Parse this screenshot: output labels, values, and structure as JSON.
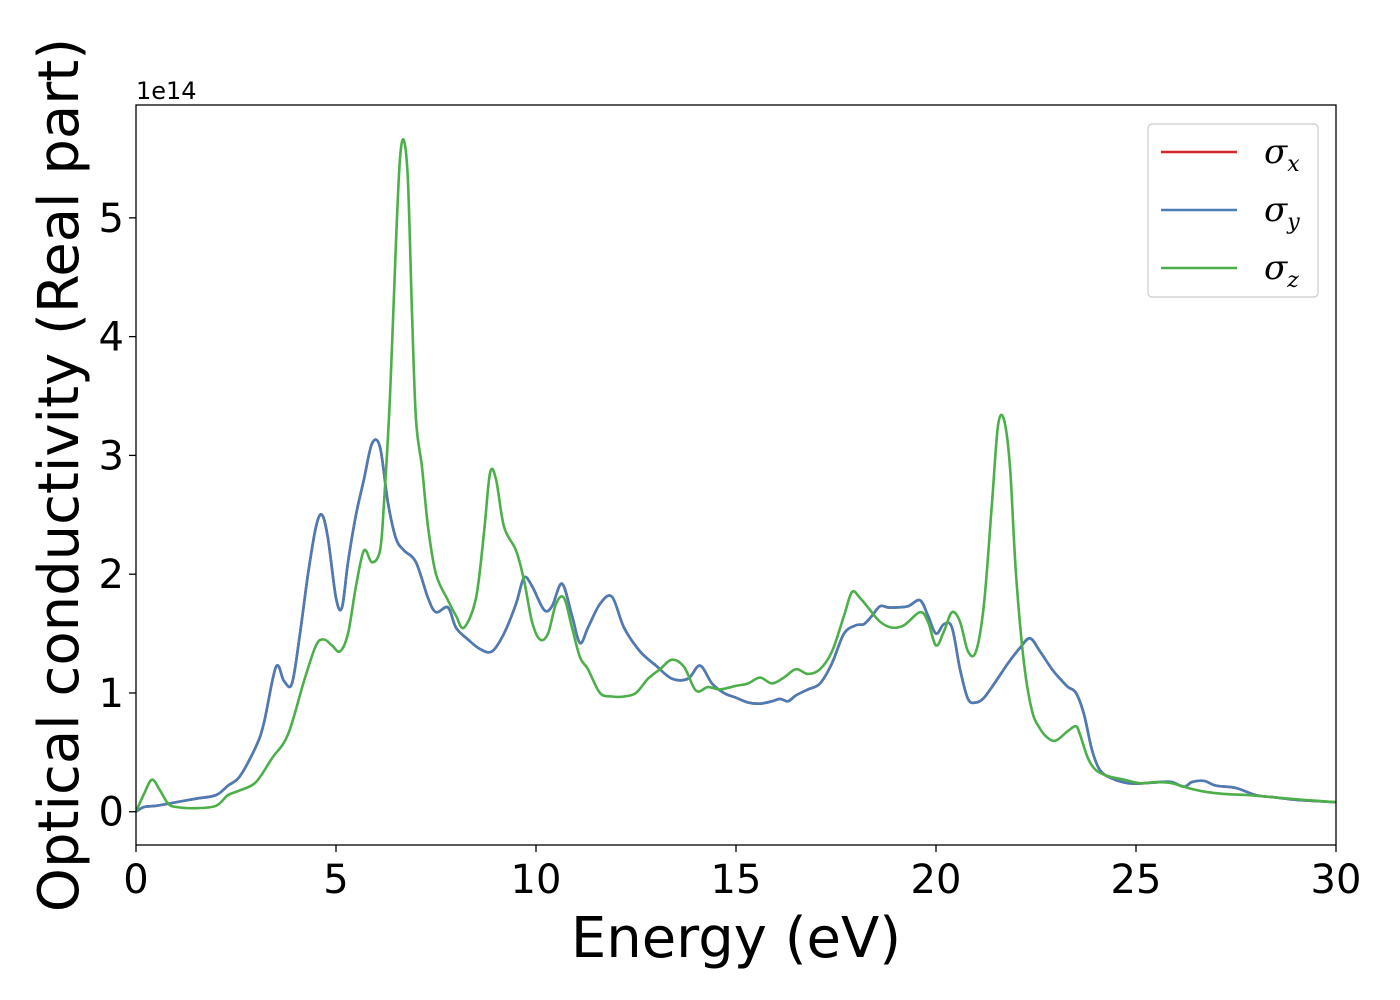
{
  "chart_data": {
    "type": "line",
    "xlabel": "Energy (eV)",
    "ylabel": "Optical conductivity (Real part)",
    "y_offset_label": "1e14",
    "y_scale": 100000000000000.0,
    "xlim": [
      0,
      30
    ],
    "ylim": [
      -0.28,
      5.95
    ],
    "x_ticks": [
      0,
      5,
      10,
      15,
      20,
      25,
      30
    ],
    "y_ticks": [
      0,
      1,
      2,
      3,
      4,
      5
    ],
    "x_tick_labels": [
      "0",
      "5",
      "10",
      "15",
      "20",
      "25",
      "30"
    ],
    "y_tick_labels": [
      "0",
      "1",
      "2",
      "3",
      "4",
      "5"
    ],
    "grid": false,
    "legend_position": "top-right",
    "series": [
      {
        "name": "σx",
        "legend_symbol": "σ",
        "legend_subscript": "x",
        "color": "#d62728",
        "x": [
          0,
          0.2,
          0.5,
          1,
          1.5,
          2,
          2.3,
          2.6,
          3,
          3.2,
          3.5,
          3.7,
          3.9,
          4.1,
          4.3,
          4.5,
          4.65,
          4.8,
          5,
          5.15,
          5.3,
          5.5,
          5.7,
          5.9,
          6.1,
          6.3,
          6.5,
          6.7,
          7,
          7.3,
          7.5,
          7.8,
          8,
          8.3,
          8.6,
          8.9,
          9.2,
          9.5,
          9.7,
          9.9,
          10.2,
          10.4,
          10.65,
          10.9,
          11.1,
          11.3,
          11.6,
          11.9,
          12.2,
          12.6,
          13,
          13.4,
          13.8,
          14.1,
          14.4,
          14.7,
          15,
          15.3,
          15.6,
          15.9,
          16.1,
          16.3,
          16.5,
          16.8,
          17.1,
          17.4,
          17.7,
          18,
          18.2,
          18.4,
          18.6,
          18.8,
          19,
          19.3,
          19.6,
          19.8,
          20,
          20.2,
          20.4,
          20.6,
          20.8,
          21,
          21.2,
          21.5,
          21.8,
          22.1,
          22.35,
          22.6,
          22.9,
          23.1,
          23.3,
          23.5,
          23.7,
          23.9,
          24.1,
          24.4,
          24.8,
          25.2,
          25.6,
          25.9,
          26.2,
          26.4,
          26.7,
          27,
          27.5,
          28,
          28.5,
          29,
          29.5,
          30
        ],
        "values": [
          0,
          0.04,
          0.05,
          0.08,
          0.11,
          0.14,
          0.22,
          0.3,
          0.55,
          0.75,
          1.22,
          1.1,
          1.08,
          1.5,
          2.0,
          2.4,
          2.5,
          2.3,
          1.8,
          1.72,
          2.1,
          2.5,
          2.8,
          3.1,
          3.07,
          2.6,
          2.3,
          2.2,
          2.1,
          1.8,
          1.68,
          1.72,
          1.55,
          1.45,
          1.37,
          1.35,
          1.5,
          1.75,
          1.97,
          1.9,
          1.7,
          1.73,
          1.92,
          1.65,
          1.42,
          1.55,
          1.75,
          1.81,
          1.55,
          1.35,
          1.23,
          1.12,
          1.12,
          1.23,
          1.08,
          1.0,
          0.96,
          0.92,
          0.91,
          0.93,
          0.95,
          0.93,
          0.98,
          1.03,
          1.08,
          1.25,
          1.5,
          1.57,
          1.58,
          1.65,
          1.73,
          1.72,
          1.72,
          1.73,
          1.78,
          1.65,
          1.5,
          1.58,
          1.55,
          1.2,
          0.95,
          0.92,
          0.96,
          1.1,
          1.25,
          1.38,
          1.46,
          1.35,
          1.2,
          1.12,
          1.05,
          1.0,
          0.82,
          0.52,
          0.35,
          0.28,
          0.24,
          0.24,
          0.25,
          0.25,
          0.21,
          0.25,
          0.26,
          0.22,
          0.2,
          0.14,
          0.12,
          0.1,
          0.09,
          0.08
        ],
        "dash": "none"
      },
      {
        "name": "σy",
        "legend_symbol": "σ",
        "legend_subscript": "y",
        "color": "#4a7db5",
        "x": [
          0,
          0.2,
          0.5,
          1,
          1.5,
          2,
          2.3,
          2.6,
          3,
          3.2,
          3.5,
          3.7,
          3.9,
          4.1,
          4.3,
          4.5,
          4.65,
          4.8,
          5,
          5.15,
          5.3,
          5.5,
          5.7,
          5.9,
          6.1,
          6.3,
          6.5,
          6.7,
          7,
          7.3,
          7.5,
          7.8,
          8,
          8.3,
          8.6,
          8.9,
          9.2,
          9.5,
          9.7,
          9.9,
          10.2,
          10.4,
          10.65,
          10.9,
          11.1,
          11.3,
          11.6,
          11.9,
          12.2,
          12.6,
          13,
          13.4,
          13.8,
          14.1,
          14.4,
          14.7,
          15,
          15.3,
          15.6,
          15.9,
          16.1,
          16.3,
          16.5,
          16.8,
          17.1,
          17.4,
          17.7,
          18,
          18.2,
          18.4,
          18.6,
          18.8,
          19,
          19.3,
          19.6,
          19.8,
          20,
          20.2,
          20.4,
          20.6,
          20.8,
          21,
          21.2,
          21.5,
          21.8,
          22.1,
          22.35,
          22.6,
          22.9,
          23.1,
          23.3,
          23.5,
          23.7,
          23.9,
          24.1,
          24.4,
          24.8,
          25.2,
          25.6,
          25.9,
          26.2,
          26.4,
          26.7,
          27,
          27.5,
          28,
          28.5,
          29,
          29.5,
          30
        ],
        "values": [
          0,
          0.04,
          0.05,
          0.08,
          0.11,
          0.14,
          0.22,
          0.3,
          0.55,
          0.75,
          1.22,
          1.1,
          1.08,
          1.5,
          2.0,
          2.4,
          2.5,
          2.3,
          1.8,
          1.72,
          2.1,
          2.5,
          2.8,
          3.1,
          3.07,
          2.6,
          2.3,
          2.2,
          2.1,
          1.8,
          1.68,
          1.72,
          1.55,
          1.45,
          1.37,
          1.35,
          1.5,
          1.75,
          1.97,
          1.9,
          1.7,
          1.73,
          1.92,
          1.65,
          1.42,
          1.55,
          1.75,
          1.81,
          1.55,
          1.35,
          1.23,
          1.12,
          1.12,
          1.23,
          1.08,
          1.0,
          0.96,
          0.92,
          0.91,
          0.93,
          0.95,
          0.93,
          0.98,
          1.03,
          1.08,
          1.25,
          1.5,
          1.57,
          1.58,
          1.65,
          1.73,
          1.72,
          1.72,
          1.73,
          1.78,
          1.65,
          1.5,
          1.58,
          1.55,
          1.2,
          0.95,
          0.92,
          0.96,
          1.1,
          1.25,
          1.38,
          1.46,
          1.35,
          1.2,
          1.12,
          1.05,
          1.0,
          0.82,
          0.52,
          0.35,
          0.28,
          0.24,
          0.24,
          0.25,
          0.25,
          0.21,
          0.25,
          0.26,
          0.22,
          0.2,
          0.14,
          0.12,
          0.1,
          0.09,
          0.08
        ],
        "dash": "none"
      },
      {
        "name": "σz",
        "legend_symbol": "σ",
        "legend_subscript": "z",
        "color": "#4daf4a",
        "x": [
          0,
          0.2,
          0.4,
          0.6,
          0.8,
          1,
          1.5,
          2,
          2.3,
          2.6,
          3,
          3.4,
          3.8,
          4.2,
          4.5,
          4.7,
          4.9,
          5.1,
          5.3,
          5.5,
          5.7,
          5.9,
          6.1,
          6.2,
          6.35,
          6.5,
          6.6,
          6.7,
          6.8,
          6.9,
          7,
          7.15,
          7.3,
          7.5,
          7.8,
          8,
          8.2,
          8.5,
          8.7,
          8.85,
          9,
          9.2,
          9.5,
          9.7,
          9.9,
          10.1,
          10.3,
          10.5,
          10.7,
          10.9,
          11.1,
          11.3,
          11.6,
          11.9,
          12.2,
          12.5,
          12.8,
          13.1,
          13.4,
          13.7,
          14,
          14.3,
          14.6,
          15,
          15.3,
          15.6,
          15.9,
          16.2,
          16.5,
          16.8,
          17.1,
          17.4,
          17.7,
          17.9,
          18.1,
          18.3,
          18.6,
          18.9,
          19.2,
          19.6,
          19.8,
          20,
          20.2,
          20.4,
          20.6,
          20.8,
          21,
          21.2,
          21.4,
          21.55,
          21.7,
          21.85,
          22,
          22.2,
          22.4,
          22.6,
          22.8,
          23,
          23.3,
          23.5,
          23.6,
          23.8,
          24,
          24.3,
          24.7,
          25.1,
          25.5,
          25.9,
          26.3,
          26.7,
          27.2,
          27.8,
          28.5,
          29.2,
          30
        ],
        "values": [
          0,
          0.15,
          0.27,
          0.18,
          0.07,
          0.04,
          0.03,
          0.05,
          0.14,
          0.18,
          0.25,
          0.45,
          0.65,
          1.1,
          1.4,
          1.45,
          1.4,
          1.35,
          1.5,
          1.9,
          2.2,
          2.1,
          2.2,
          2.6,
          3.5,
          4.8,
          5.5,
          5.65,
          5.3,
          4.2,
          3.3,
          2.9,
          2.4,
          2.0,
          1.78,
          1.65,
          1.55,
          1.8,
          2.35,
          2.85,
          2.8,
          2.4,
          2.2,
          1.95,
          1.6,
          1.45,
          1.5,
          1.75,
          1.8,
          1.55,
          1.3,
          1.2,
          1.0,
          0.97,
          0.97,
          1.0,
          1.12,
          1.2,
          1.28,
          1.22,
          1.02,
          1.05,
          1.03,
          1.06,
          1.08,
          1.13,
          1.08,
          1.13,
          1.2,
          1.16,
          1.2,
          1.35,
          1.65,
          1.85,
          1.8,
          1.72,
          1.6,
          1.55,
          1.57,
          1.68,
          1.6,
          1.4,
          1.52,
          1.68,
          1.6,
          1.35,
          1.35,
          1.75,
          2.6,
          3.25,
          3.3,
          2.9,
          2.0,
          1.25,
          0.85,
          0.7,
          0.62,
          0.6,
          0.68,
          0.72,
          0.65,
          0.45,
          0.35,
          0.3,
          0.27,
          0.24,
          0.25,
          0.24,
          0.2,
          0.17,
          0.15,
          0.14,
          0.12,
          0.1,
          0.08
        ],
        "dash": "none"
      }
    ]
  }
}
